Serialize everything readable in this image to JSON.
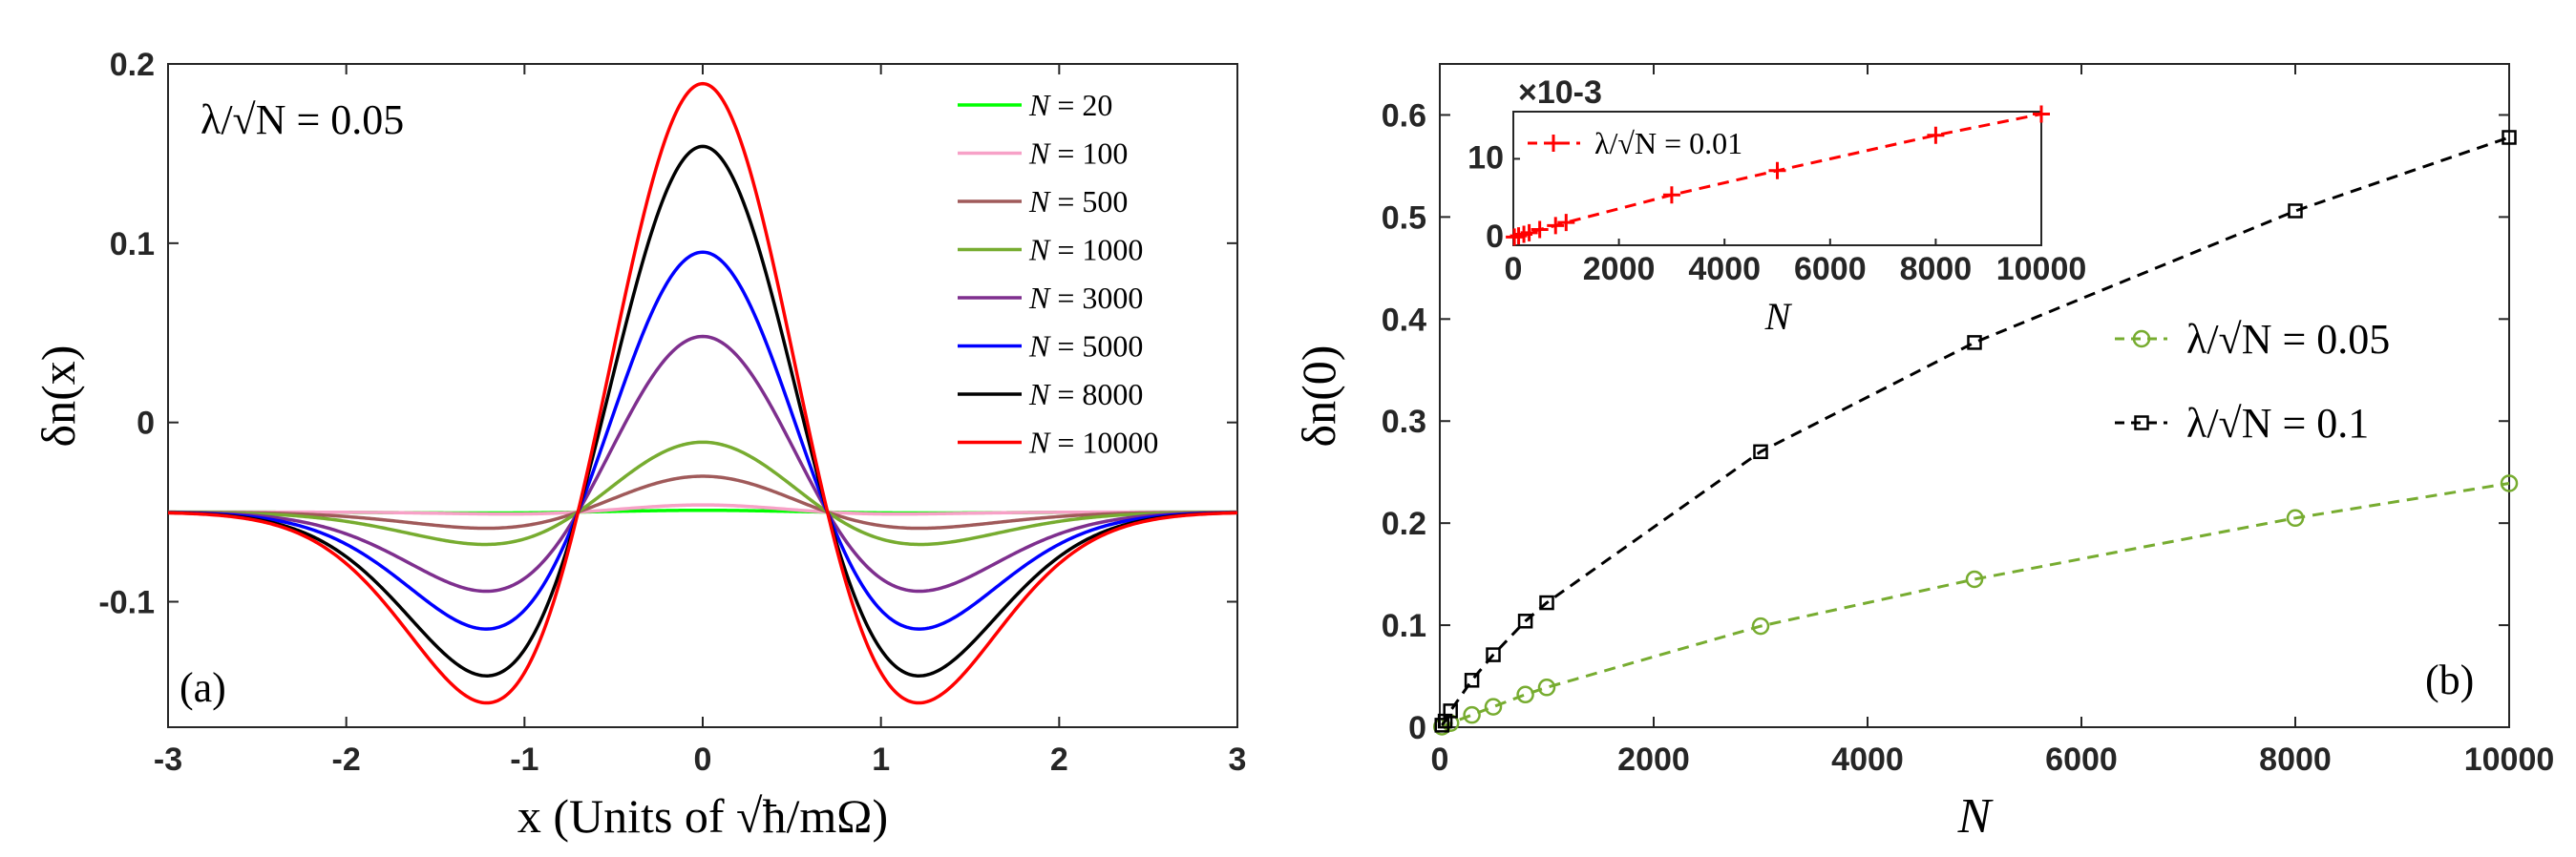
{
  "figure": {
    "panels": [
      "(a)",
      "(b)"
    ]
  },
  "chart_data": [
    {
      "type": "line",
      "panel_label": "(a)",
      "annotation": "λ/√N = 0.05",
      "xlabel": "x (Units of √ħ/mΩ)",
      "ylabel": "δn(x)",
      "xlim": [
        -3,
        3
      ],
      "ylim": [
        -0.17,
        0.2
      ],
      "xticks": [
        -3,
        -2,
        -1,
        0,
        1,
        2,
        3
      ],
      "yticks": [
        -0.1,
        0,
        0.1,
        0.2
      ],
      "ytick_labels": [
        "-0.1",
        "0",
        "0.1",
        "0.2"
      ],
      "legend_position": "top-right",
      "baseline": -0.05,
      "series": [
        {
          "name": "N = 20",
          "N_value": "20",
          "color": "#00ff00",
          "peak": -0.049,
          "trough": -0.0505
        },
        {
          "name": "N = 100",
          "N_value": "100",
          "color": "#f7a1c7",
          "peak": -0.046,
          "trough": -0.051
        },
        {
          "name": "N = 500",
          "N_value": "500",
          "color": "#a05a5a",
          "peak": -0.03,
          "trough": -0.059
        },
        {
          "name": "N = 1000",
          "N_value": "1000",
          "color": "#77ac30",
          "peak": -0.011,
          "trough": -0.068
        },
        {
          "name": "N = 3000",
          "N_value": "3000",
          "color": "#7e2f8e",
          "peak": 0.048,
          "trough": -0.094
        },
        {
          "name": "N = 5000",
          "N_value": "5000",
          "color": "#0000ff",
          "peak": 0.095,
          "trough": -0.115
        },
        {
          "name": "N = 8000",
          "N_value": "8000",
          "color": "#000000",
          "peak": 0.154,
          "trough": -0.141
        },
        {
          "name": "N = 10000",
          "N_value": "10000",
          "color": "#ff0000",
          "peak": 0.189,
          "trough": -0.156
        }
      ]
    },
    {
      "type": "line",
      "panel_label": "(b)",
      "xlabel": "N",
      "ylabel": "δn(0)",
      "xlim": [
        0,
        10000
      ],
      "ylim": [
        0,
        0.65
      ],
      "xticks": [
        0,
        2000,
        4000,
        6000,
        8000,
        10000
      ],
      "yticks": [
        0,
        0.1,
        0.2,
        0.3,
        0.4,
        0.5,
        0.6
      ],
      "ytick_labels": [
        "0",
        "0.1",
        "0.2",
        "0.3",
        "0.4",
        "0.5",
        "0.6"
      ],
      "legend_position": "center-right",
      "series": [
        {
          "name": "λ/√N = 0.05",
          "lambda_value": "0.05",
          "color": "#77ac30",
          "marker": "circle",
          "x": [
            20,
            100,
            300,
            500,
            800,
            1000,
            3000,
            5000,
            8000,
            10000
          ],
          "y": [
            0.0005,
            0.004,
            0.012,
            0.02,
            0.032,
            0.039,
            0.099,
            0.145,
            0.205,
            0.239
          ]
        },
        {
          "name": "λ/√N = 0.1",
          "lambda_value": "0.1",
          "color": "#000000",
          "marker": "square",
          "x": [
            20,
            50,
            100,
            300,
            500,
            800,
            1000,
            3000,
            5000,
            8000,
            10000
          ],
          "y": [
            0.002,
            0.006,
            0.016,
            0.046,
            0.071,
            0.104,
            0.122,
            0.27,
            0.377,
            0.506,
            0.578
          ]
        }
      ]
    },
    {
      "type": "line",
      "panel_label": "inset",
      "xlabel": "N",
      "ylabel": "",
      "exponent_label": "×10-3",
      "xlim": [
        0,
        10000
      ],
      "ylim": [
        -1,
        16
      ],
      "xticks": [
        0,
        2000,
        4000,
        6000,
        8000,
        10000
      ],
      "yticks": [
        0,
        10
      ],
      "ytick_labels": [
        "0",
        "10"
      ],
      "legend_position": "top-left",
      "series": [
        {
          "name": "λ/√N = 0.01",
          "lambda_value": "0.01",
          "color": "#ff0000",
          "marker": "plus",
          "x": [
            20,
            100,
            200,
            300,
            500,
            800,
            1000,
            3000,
            5000,
            8000,
            10000
          ],
          "y": [
            0.05,
            0.2,
            0.4,
            0.6,
            1.0,
            1.5,
            1.9,
            5.4,
            8.5,
            13.0,
            15.7
          ]
        }
      ]
    }
  ]
}
